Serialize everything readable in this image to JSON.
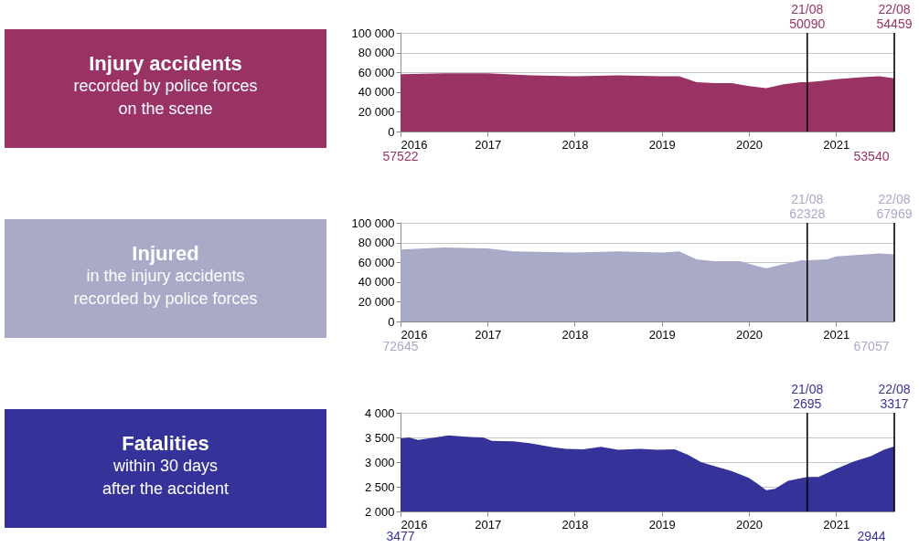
{
  "chart_data": [
    {
      "type": "other",
      "title": "Injury accidents",
      "subtitle": "recorded by police forces\non the scene",
      "color": "#993366"
    },
    {
      "type": "area",
      "color": "#993366",
      "grid": "y",
      "x": [
        2016,
        2016.5,
        2017,
        2017.5,
        2018,
        2018.5,
        2019,
        2019.2,
        2019.4,
        2019.6,
        2019.8,
        2020,
        2020.2,
        2020.4,
        2020.6,
        2020.67,
        2020.8,
        2021,
        2021.3,
        2021.5,
        2021.67
      ],
      "values": [
        58000,
        59000,
        59000,
        57000,
        56000,
        57000,
        56000,
        56000,
        50000,
        49000,
        49000,
        46000,
        44000,
        48000,
        50000,
        50000,
        51000,
        53000,
        55000,
        56000,
        54000
      ],
      "xlim": [
        2016,
        2021.67
      ],
      "xticks": [
        2016,
        2017,
        2018,
        2019,
        2020,
        2021
      ],
      "ylim": [
        0,
        100000
      ],
      "yticks": [
        0,
        {
          "value": 20000,
          "label": "20 000"
        },
        {
          "value": 40000,
          "label": "40 000"
        },
        {
          "value": 60000,
          "label": "60 000"
        },
        {
          "value": 80000,
          "label": "80 000"
        },
        {
          "value": 100000,
          "label": "100 000"
        }
      ],
      "ref_lines": [
        {
          "axis": "x",
          "value": 2020.67,
          "color": "#000000"
        },
        {
          "axis": "x",
          "value": 2021.67,
          "color": "#000000"
        }
      ],
      "annotations": [
        "21/08",
        "50090",
        "22/08",
        "54459",
        "57522",
        "53540"
      ]
    },
    {
      "type": "other",
      "title": "Injured",
      "subtitle": "in the injury accidents\nrecorded by police forces",
      "color": "#a9a9c8"
    },
    {
      "type": "area",
      "color": "#a9a9c8",
      "grid": "y",
      "x": [
        2016,
        2016.5,
        2017,
        2017.3,
        2018,
        2018.5,
        2019,
        2019.2,
        2019.4,
        2019.6,
        2019.9,
        2020.1,
        2020.2,
        2020.4,
        2020.6,
        2020.67,
        2020.9,
        2021,
        2021.5,
        2021.67
      ],
      "values": [
        73000,
        75000,
        74000,
        71000,
        70000,
        71000,
        70000,
        71000,
        63000,
        61000,
        61000,
        56000,
        54000,
        58000,
        62000,
        62000,
        63000,
        66000,
        69000,
        68000
      ],
      "xlim": [
        2016,
        2021.67
      ],
      "xticks": [
        2016,
        2017,
        2018,
        2019,
        2020,
        2021
      ],
      "ylim": [
        0,
        100000
      ],
      "yticks": [
        0,
        {
          "value": 20000,
          "label": "20 000"
        },
        {
          "value": 40000,
          "label": "40 000"
        },
        {
          "value": 60000,
          "label": "60 000"
        },
        {
          "value": 80000,
          "label": "80 000"
        },
        {
          "value": 100000,
          "label": "100 000"
        }
      ],
      "ref_lines": [
        {
          "axis": "x",
          "value": 2020.67,
          "color": "#000000"
        },
        {
          "axis": "x",
          "value": 2021.67,
          "color": "#000000"
        }
      ],
      "annotations": [
        "21/08",
        "62328",
        "22/08",
        "67969",
        "72645",
        "67057"
      ]
    },
    {
      "type": "other",
      "title": "Fatalities",
      "subtitle": "within 30 days\nafter the accident",
      "color": "#35339a"
    },
    {
      "type": "area",
      "color": "#35339a",
      "grid": "y",
      "x": [
        2016,
        2016.1,
        2016.2,
        2016.4,
        2016.55,
        2016.8,
        2016.95,
        2017.05,
        2017.3,
        2017.5,
        2017.75,
        2017.9,
        2018.1,
        2018.3,
        2018.5,
        2018.75,
        2018.95,
        2019.15,
        2019.3,
        2019.45,
        2019.6,
        2019.8,
        2020,
        2020.1,
        2020.2,
        2020.3,
        2020.45,
        2020.67,
        2020.8,
        2021,
        2021.2,
        2021.4,
        2021.55,
        2021.67
      ],
      "values": [
        3480,
        3500,
        3450,
        3500,
        3540,
        3510,
        3500,
        3430,
        3420,
        3380,
        3300,
        3270,
        3260,
        3310,
        3250,
        3270,
        3250,
        3260,
        3150,
        3000,
        2920,
        2820,
        2680,
        2560,
        2430,
        2460,
        2620,
        2700,
        2700,
        2860,
        3010,
        3120,
        3250,
        3320
      ],
      "xlim": [
        2016,
        2021.67
      ],
      "xticks": [
        2016,
        2017,
        2018,
        2019,
        2020,
        2021
      ],
      "ylim": [
        2000,
        4000
      ],
      "yticks": [
        {
          "value": 2000,
          "label": "2 000"
        },
        {
          "value": 2500,
          "label": "2 500"
        },
        {
          "value": 3000,
          "label": "3 000"
        },
        {
          "value": 3500,
          "label": "3 500"
        },
        {
          "value": 4000,
          "label": "4 000"
        }
      ],
      "ref_lines": [
        {
          "axis": "x",
          "value": 2020.67,
          "color": "#000000"
        },
        {
          "axis": "x",
          "value": 2021.67,
          "color": "#000000"
        }
      ],
      "annotations": [
        "21/08",
        "2695",
        "22/08",
        "3317",
        "3477",
        "2944"
      ]
    }
  ]
}
